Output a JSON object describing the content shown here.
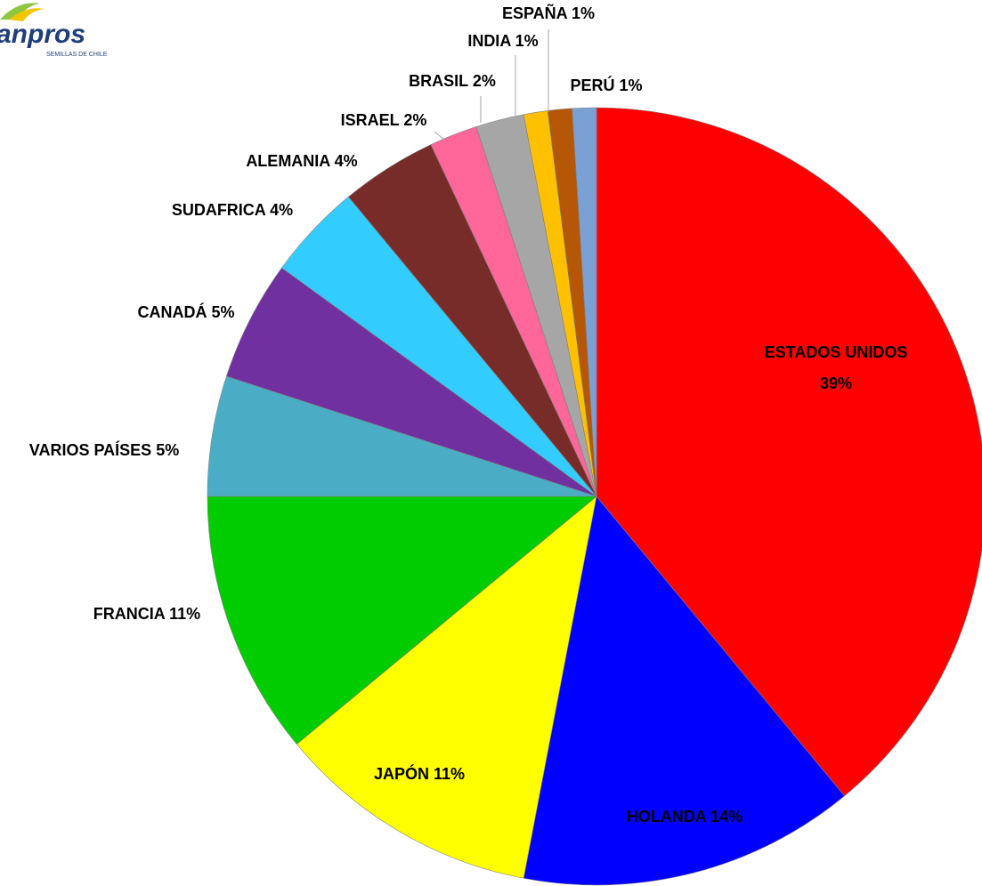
{
  "logo": {
    "name": "anpros",
    "tagline": "SEMILLAS DE CHILE"
  },
  "chart_data": {
    "type": "pie",
    "categories": [
      "ESTADOS UNIDOS",
      "HOLANDA",
      "JAPÓN",
      "FRANCIA",
      "VARIOS PAÍSES",
      "CANADÁ",
      "SUDAFRICA",
      "ALEMANIA",
      "ISRAEL",
      "BRASIL",
      "INDIA",
      "ESPAÑA",
      "PERÚ"
    ],
    "values": [
      39,
      14,
      11,
      11,
      5,
      5,
      4,
      4,
      2,
      2,
      1,
      1,
      1
    ],
    "value_labels": [
      "39%",
      "14%",
      "11%",
      "11%",
      "5%",
      "5%",
      "4%",
      "4%",
      "2%",
      "2%",
      "1%",
      "1%",
      "1%"
    ],
    "colors": [
      "#ff0000",
      "#0000ff",
      "#ffff00",
      "#00cc00",
      "#4bacc6",
      "#7030a0",
      "#33ccff",
      "#772c2a",
      "#ff6699",
      "#a6a6a6",
      "#ffc000",
      "#b65708",
      "#7aa0d4"
    ]
  }
}
